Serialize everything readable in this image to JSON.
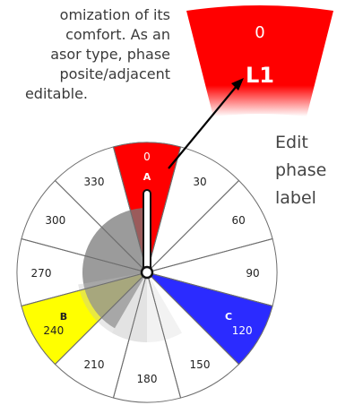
{
  "paragraph": {
    "lines": [
      "omization of its",
      "comfort. As an",
      "asor type, phase",
      "posite/adjacent",
      "editable."
    ]
  },
  "callout": {
    "angle_value": "0",
    "phase_label": "L1",
    "text_lines": [
      "Edit",
      "phase",
      "label"
    ]
  },
  "dial": {
    "tick_labels": [
      "0",
      "30",
      "60",
      "90",
      "120",
      "150",
      "180",
      "210",
      "240",
      "270",
      "300",
      "330"
    ],
    "phases": [
      {
        "name": "A",
        "angle": "0",
        "color": "#ff0000"
      },
      {
        "name": "B",
        "angle": "240",
        "color": "#ffff00"
      },
      {
        "name": "C",
        "angle": "120",
        "color": "#2b2bff"
      }
    ]
  }
}
